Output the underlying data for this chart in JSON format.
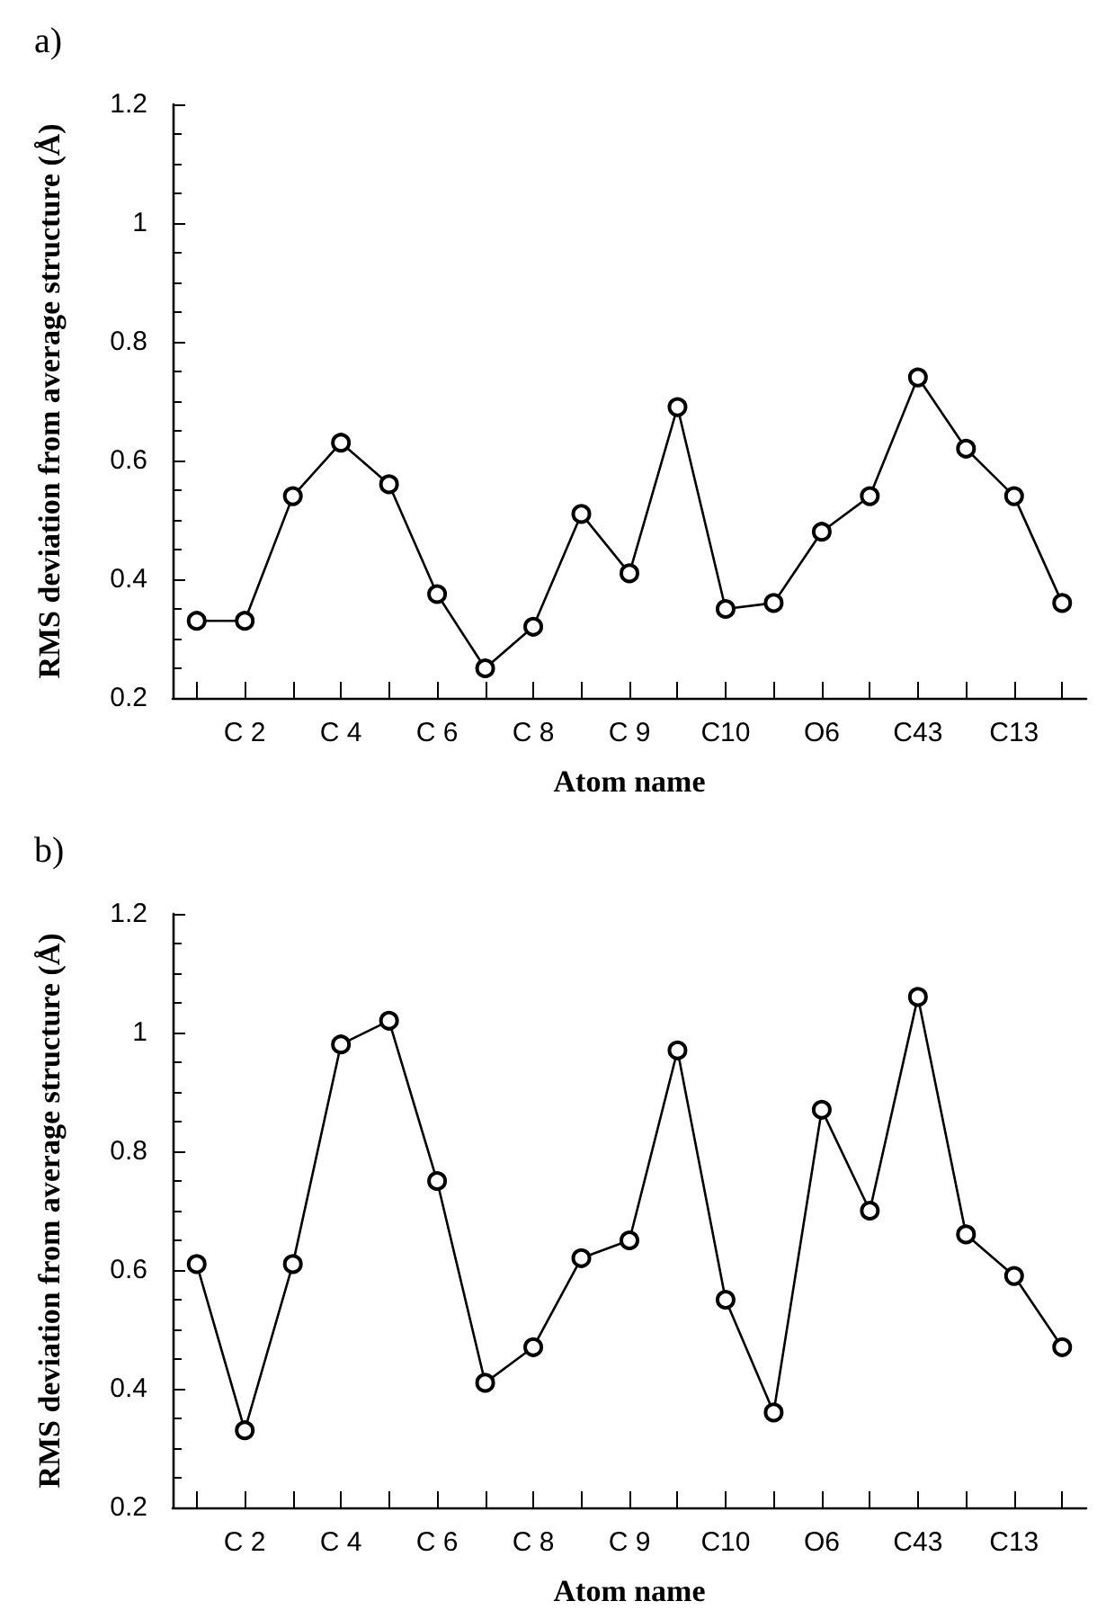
{
  "chart_data": [
    {
      "type": "line",
      "title": "a)",
      "xlabel": "Atom name",
      "ylabel": "RMS deviation from average structure (Å)",
      "categories": [
        null,
        "C 2",
        null,
        "C 4",
        null,
        "C 6",
        null,
        "C 8",
        null,
        "C 9",
        null,
        "C10",
        null,
        "O6",
        null,
        "C43",
        null,
        "C13",
        null
      ],
      "series": [
        {
          "color": "#000000",
          "values": [
            0.33,
            0.33,
            0.54,
            0.63,
            0.56,
            0.375,
            0.25,
            0.32,
            0.51,
            0.41,
            0.69,
            0.35,
            0.36,
            0.48,
            0.54,
            0.74,
            0.62,
            0.54,
            0.36
          ]
        }
      ],
      "ylim": [
        0.2,
        1.2
      ],
      "yticks": [
        0.2,
        0.4,
        0.6,
        0.8,
        1,
        1.2
      ],
      "grid": false,
      "marker": "circle",
      "line_style": "solid"
    },
    {
      "type": "line",
      "title": "b)",
      "xlabel": "Atom name",
      "ylabel": "RMS deviation from average structure (Å)",
      "categories": [
        null,
        "C 2",
        null,
        "C 4",
        null,
        "C 6",
        null,
        "C 8",
        null,
        "C 9",
        null,
        "C10",
        null,
        "O6",
        null,
        "C43",
        null,
        "C13",
        null
      ],
      "series": [
        {
          "color": "#000000",
          "values": [
            0.61,
            0.33,
            0.61,
            0.98,
            1.02,
            0.75,
            0.41,
            0.47,
            0.62,
            0.65,
            0.97,
            0.55,
            0.36,
            0.87,
            0.7,
            1.06,
            0.66,
            0.59,
            0.47
          ]
        }
      ],
      "ylim": [
        0.2,
        1.2
      ],
      "yticks": [
        0.2,
        0.4,
        0.6,
        0.8,
        1,
        1.2
      ],
      "grid": false,
      "marker": "circle",
      "line_style": "solid"
    }
  ]
}
